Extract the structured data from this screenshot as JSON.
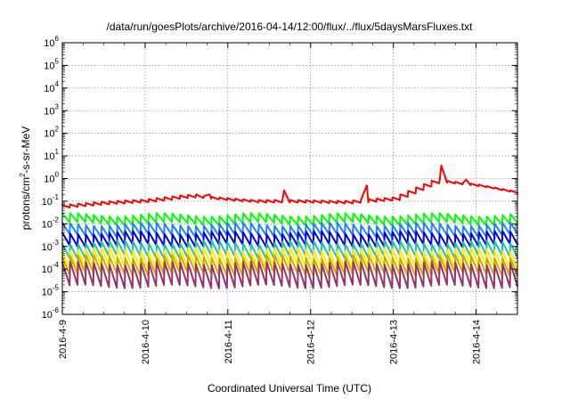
{
  "chart_data": {
    "type": "line",
    "title": "/data/run/goesPlots/archive/2016-04-14/12:00/flux/../flux/5daysMarsFluxes.txt",
    "xlabel": "Coordinated Universal Time (UTC)",
    "ylabel_parts": {
      "base": "protons/cm",
      "sup": "2",
      "tail": "-s-sr-MeV"
    },
    "yscale": "log",
    "ylim": [
      1e-06,
      1000000.0
    ],
    "y_tick_exponents": [
      -6,
      -5,
      -4,
      -3,
      -2,
      -1,
      0,
      1,
      2,
      3,
      4,
      5,
      6
    ],
    "x_tick_labels": [
      "2016-4-9",
      "2016-4-10",
      "2016-4-11",
      "2016-4-12",
      "2016-4-13",
      "2016-4-14"
    ],
    "x_range_days": [
      0,
      5.5
    ],
    "grid": true,
    "series": [
      {
        "color": "#ff0000",
        "pattern": "sawtooth",
        "baseline": [
          [
            0,
            0.06
          ],
          [
            0.5,
            0.085
          ],
          [
            1.0,
            0.105
          ],
          [
            1.5,
            0.17
          ],
          [
            2.0,
            0.12
          ],
          [
            2.3,
            0.1
          ],
          [
            2.8,
            0.1
          ],
          [
            3.4,
            0.09
          ],
          [
            4.0,
            0.13
          ],
          [
            4.5,
            0.8
          ],
          [
            5.0,
            0.5
          ],
          [
            5.5,
            0.23
          ]
        ],
        "spikes": [
          [
            1.62,
            0.2
          ],
          [
            1.78,
            0.2
          ],
          [
            2.68,
            0.3
          ],
          [
            3.68,
            0.5
          ],
          [
            4.58,
            3.8
          ],
          [
            4.88,
            0.9
          ]
        ],
        "amplitude": 0.3
      },
      {
        "color": "#00ff00",
        "pattern": "sawtooth",
        "peak": 0.025,
        "trough": 0.01
      },
      {
        "color": "#2080ff",
        "pattern": "sawtooth",
        "peak": 0.0095,
        "trough": 0.003
      },
      {
        "color": "#0000dd",
        "pattern": "sawtooth",
        "peak": 0.004,
        "trough": 0.0011
      },
      {
        "color": "#20c0b0",
        "pattern": "sawtooth",
        "peak": 0.0015,
        "trough": 0.00035
      },
      {
        "color": "#ffee00",
        "pattern": "sawtooth",
        "peak": 0.0007,
        "trough": 0.00012
      },
      {
        "color": "#ccaa00",
        "pattern": "sawtooth",
        "peak": 0.00035,
        "trough": 6e-05
      },
      {
        "color": "#993366",
        "pattern": "sawtooth",
        "peak": 0.00018,
        "trough": 1.7e-05
      }
    ]
  }
}
